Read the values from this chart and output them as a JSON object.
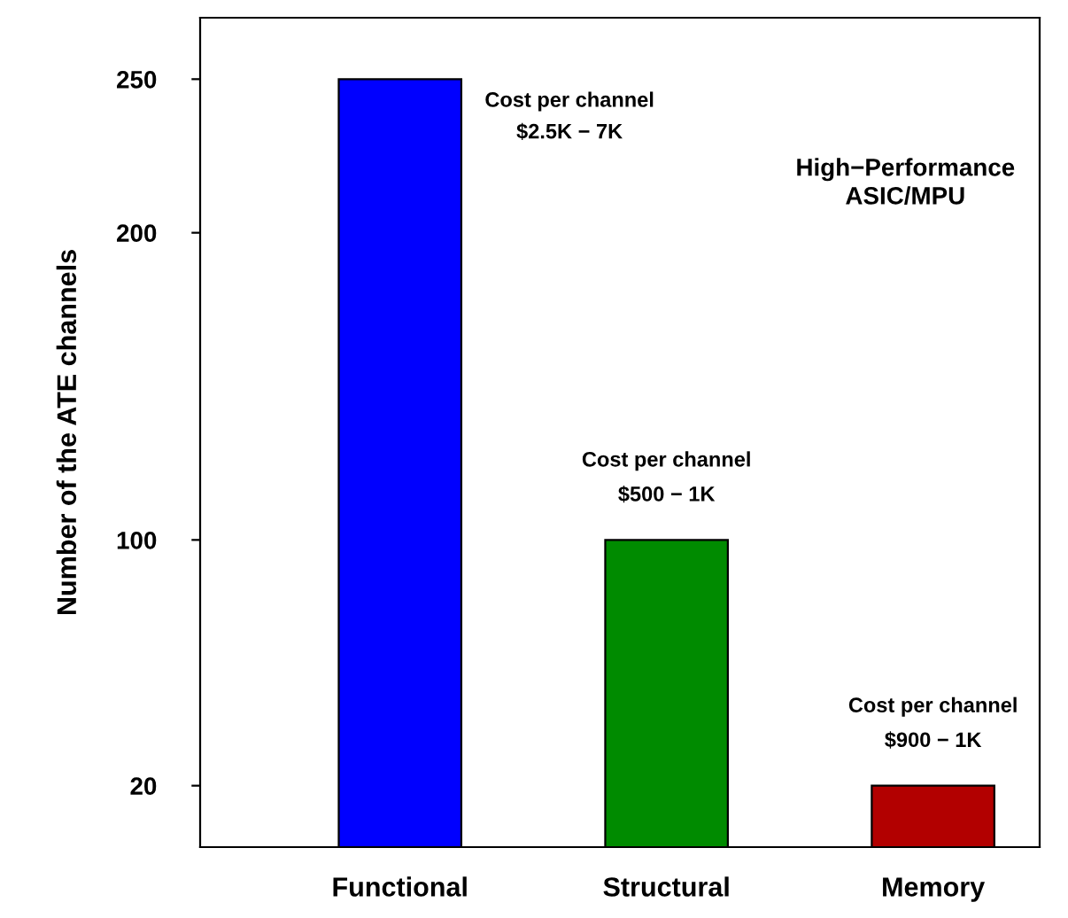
{
  "chart_data": {
    "type": "bar",
    "categories": [
      "Functional",
      "Structural",
      "Memory"
    ],
    "values": [
      250,
      100,
      20
    ],
    "colors": [
      "#0000ff",
      "#008b00",
      "#b20000"
    ],
    "ylabel": "Number of the ATE channels",
    "ylim": [
      0,
      270
    ],
    "yticks": [
      20,
      100,
      200,
      250
    ],
    "grid": false,
    "legend": false,
    "annotations": [
      "Cost per channel\n$2.5K − 7K",
      {
        "text": "Cost per channel\n$500 − 1K",
        "x": "Structural",
        "y": 100
      },
      {
        "text": "Cost per channel\n$900 − 1K",
        "x": "Memory",
        "y": 20
      },
      "High−Performance\nASIC/MPU"
    ]
  }
}
